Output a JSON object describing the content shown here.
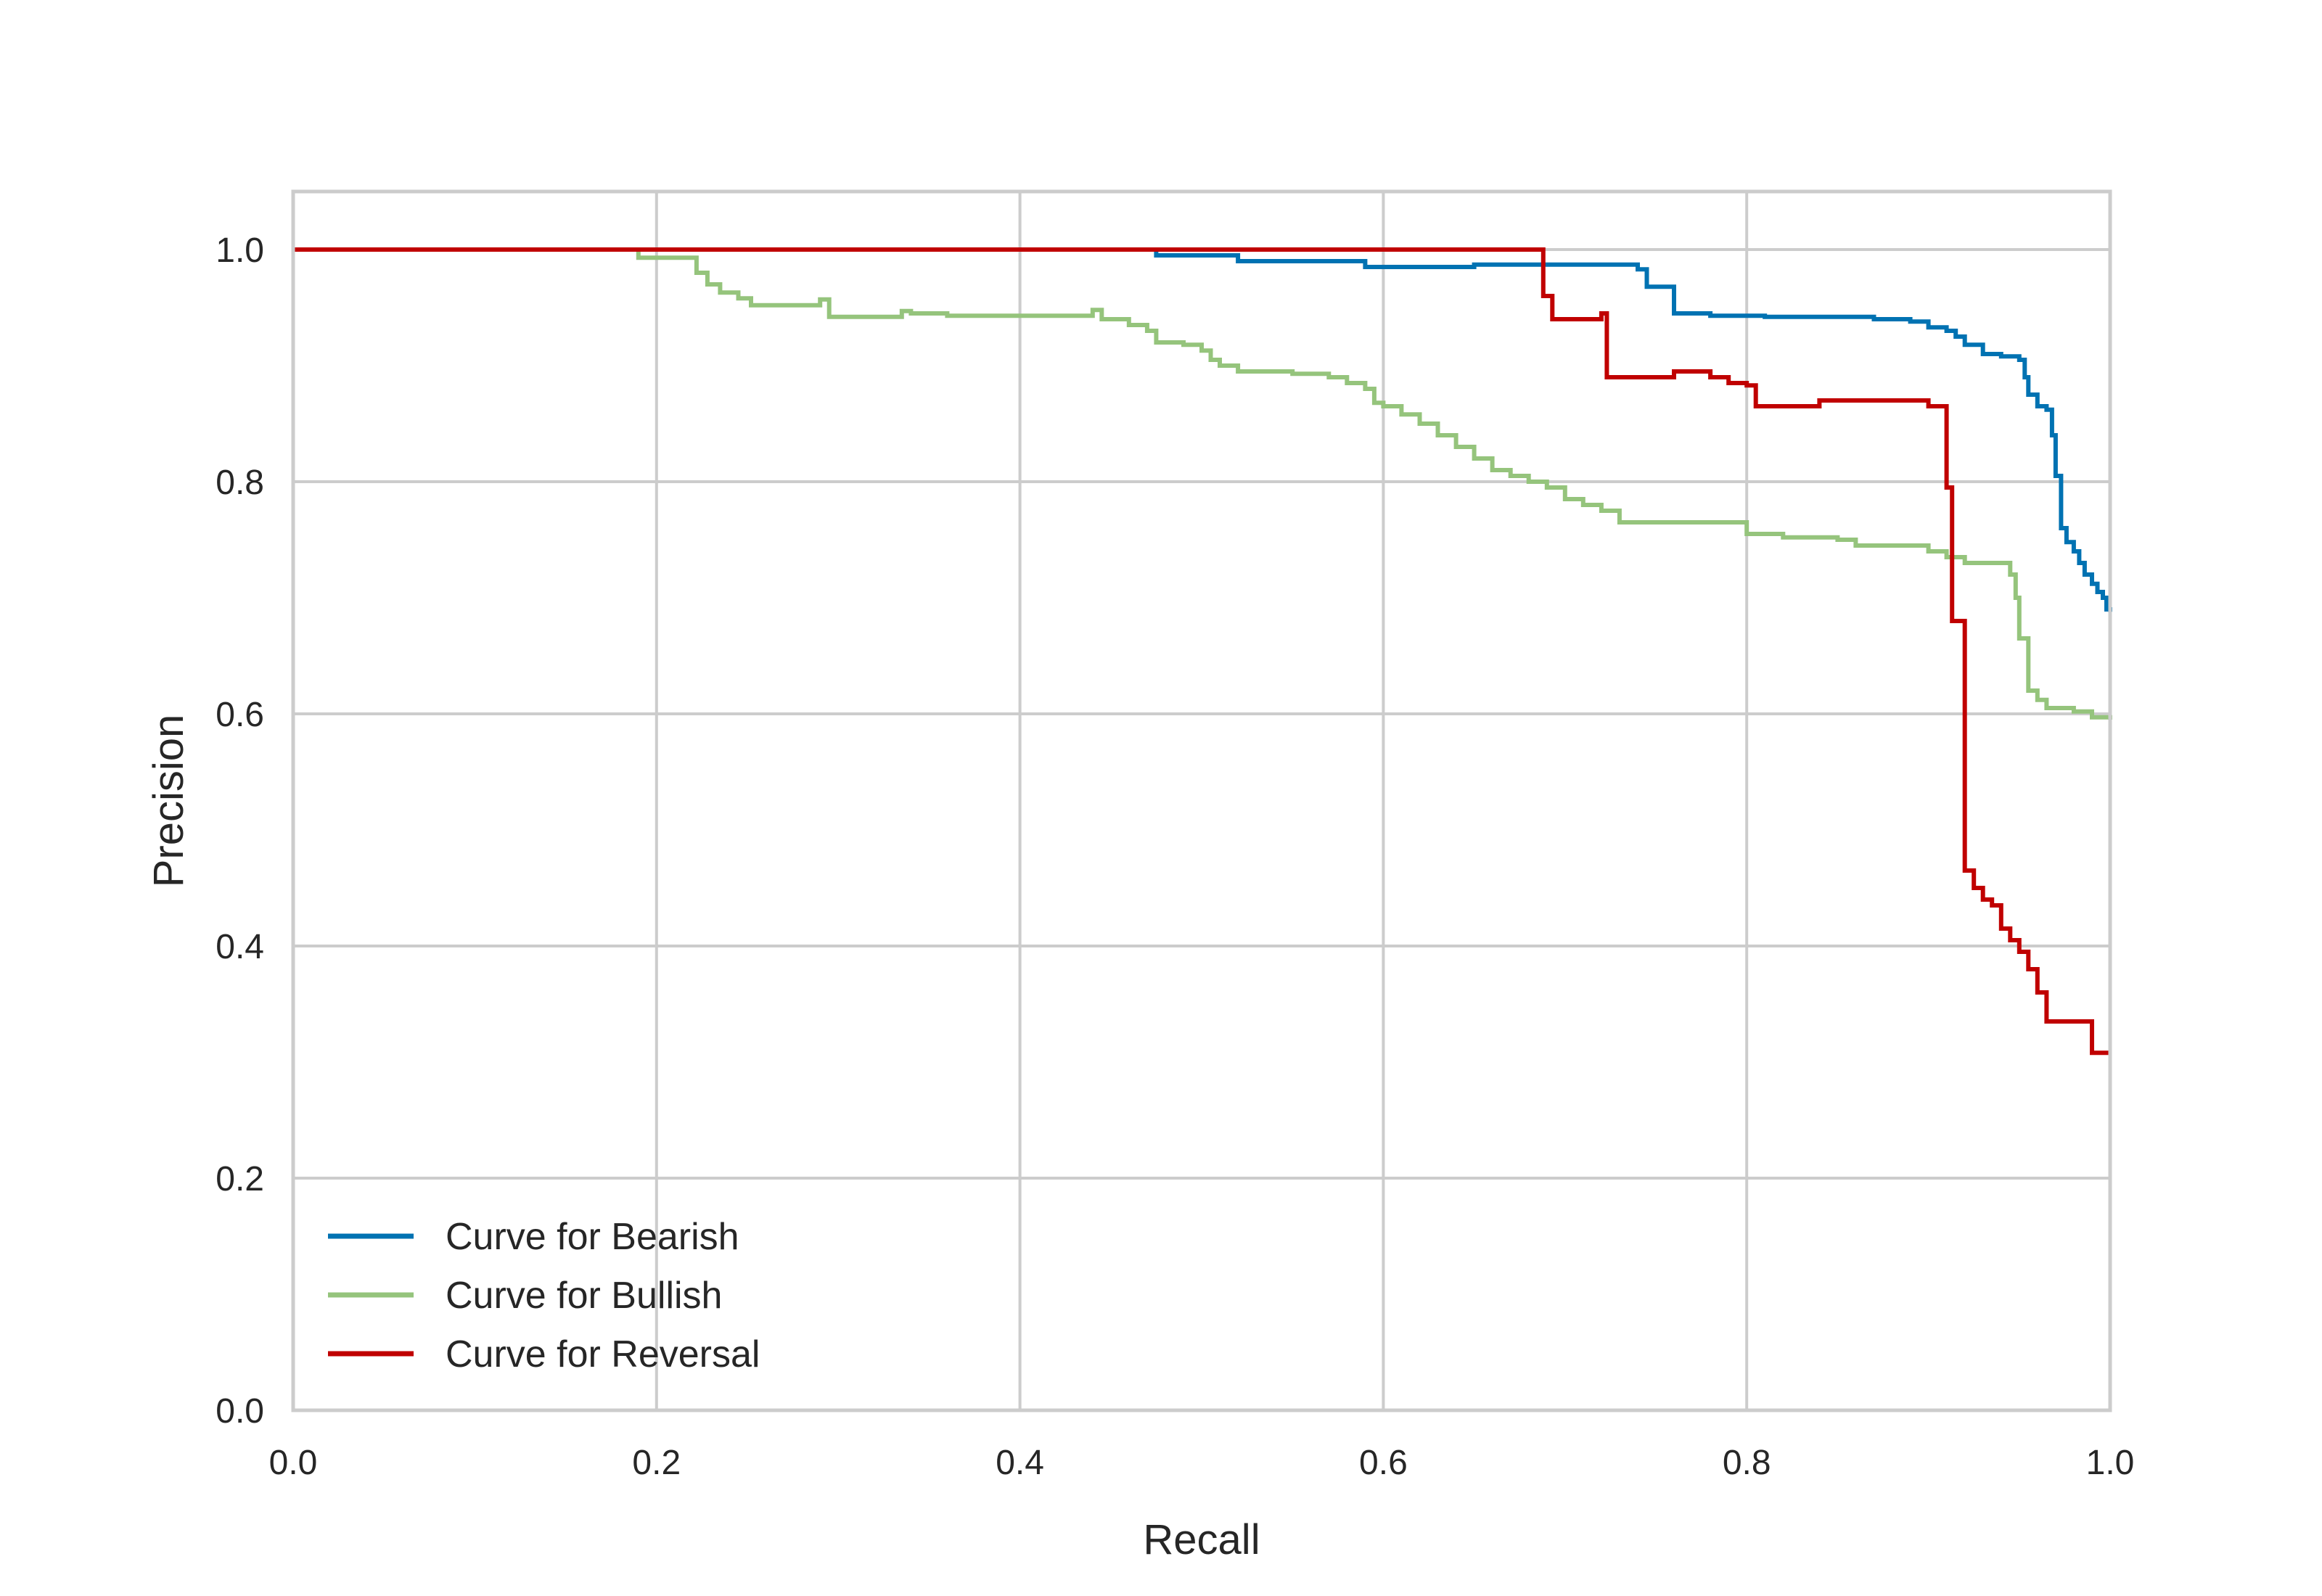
{
  "chart_data": {
    "type": "line",
    "title": "",
    "xlabel": "Recall",
    "ylabel": "Precision",
    "xlim": [
      0.0,
      1.0
    ],
    "ylim": [
      0.0,
      1.05
    ],
    "xticks": [
      "0.0",
      "0.2",
      "0.4",
      "0.6",
      "0.8",
      "1.0"
    ],
    "yticks": [
      "0.0",
      "0.2",
      "0.4",
      "0.6",
      "0.8",
      "1.0"
    ],
    "grid": true,
    "legend_position": "lower-left",
    "step": "post",
    "series": [
      {
        "name": "Curve for Bearish",
        "color": "#0072B2",
        "x": [
          0.0,
          0.475,
          0.52,
          0.59,
          0.65,
          0.735,
          0.74,
          0.745,
          0.75,
          0.76,
          0.78,
          0.81,
          0.85,
          0.87,
          0.89,
          0.9,
          0.91,
          0.915,
          0.92,
          0.93,
          0.94,
          0.95,
          0.953,
          0.955,
          0.96,
          0.965,
          0.968,
          0.97,
          0.973,
          0.976,
          0.98,
          0.983,
          0.986,
          0.99,
          0.993,
          0.996,
          0.998,
          1.0
        ],
        "y": [
          1.0,
          0.995,
          0.99,
          0.985,
          0.987,
          0.987,
          0.983,
          0.968,
          0.968,
          0.945,
          0.943,
          0.942,
          0.942,
          0.94,
          0.938,
          0.933,
          0.93,
          0.925,
          0.918,
          0.91,
          0.908,
          0.905,
          0.89,
          0.875,
          0.865,
          0.862,
          0.84,
          0.805,
          0.76,
          0.748,
          0.74,
          0.73,
          0.72,
          0.712,
          0.705,
          0.7,
          0.69,
          0.688
        ]
      },
      {
        "name": "Curve for Bullish",
        "color": "#95C47C",
        "x": [
          0.0,
          0.19,
          0.222,
          0.228,
          0.235,
          0.245,
          0.252,
          0.29,
          0.295,
          0.335,
          0.34,
          0.36,
          0.44,
          0.445,
          0.46,
          0.47,
          0.475,
          0.49,
          0.5,
          0.505,
          0.51,
          0.52,
          0.55,
          0.57,
          0.58,
          0.59,
          0.595,
          0.6,
          0.61,
          0.62,
          0.63,
          0.64,
          0.65,
          0.66,
          0.67,
          0.68,
          0.69,
          0.7,
          0.71,
          0.72,
          0.73,
          0.78,
          0.8,
          0.82,
          0.85,
          0.86,
          0.9,
          0.91,
          0.92,
          0.94,
          0.945,
          0.948,
          0.95,
          0.955,
          0.96,
          0.965,
          0.98,
          0.99,
          1.0
        ],
        "y": [
          1.0,
          0.993,
          0.98,
          0.97,
          0.963,
          0.958,
          0.952,
          0.957,
          0.942,
          0.947,
          0.945,
          0.943,
          0.948,
          0.94,
          0.935,
          0.93,
          0.92,
          0.918,
          0.913,
          0.905,
          0.9,
          0.895,
          0.893,
          0.89,
          0.885,
          0.88,
          0.868,
          0.865,
          0.858,
          0.85,
          0.84,
          0.83,
          0.82,
          0.81,
          0.805,
          0.8,
          0.795,
          0.785,
          0.78,
          0.775,
          0.765,
          0.765,
          0.755,
          0.752,
          0.75,
          0.745,
          0.74,
          0.735,
          0.73,
          0.73,
          0.72,
          0.7,
          0.665,
          0.62,
          0.612,
          0.605,
          0.602,
          0.597,
          0.595
        ]
      },
      {
        "name": "Curve for Reversal",
        "color": "#C00000",
        "x": [
          0.0,
          0.688,
          0.693,
          0.72,
          0.723,
          0.76,
          0.78,
          0.79,
          0.8,
          0.805,
          0.84,
          0.9,
          0.91,
          0.913,
          0.917,
          0.92,
          0.925,
          0.93,
          0.935,
          0.94,
          0.945,
          0.95,
          0.955,
          0.96,
          0.965,
          0.975,
          0.98,
          0.99,
          1.0
        ],
        "y": [
          1.0,
          0.96,
          0.94,
          0.945,
          0.89,
          0.895,
          0.89,
          0.885,
          0.883,
          0.865,
          0.87,
          0.865,
          0.795,
          0.68,
          0.68,
          0.465,
          0.45,
          0.44,
          0.435,
          0.415,
          0.405,
          0.395,
          0.38,
          0.36,
          0.335,
          0.335,
          0.335,
          0.308,
          0.308
        ]
      }
    ]
  }
}
